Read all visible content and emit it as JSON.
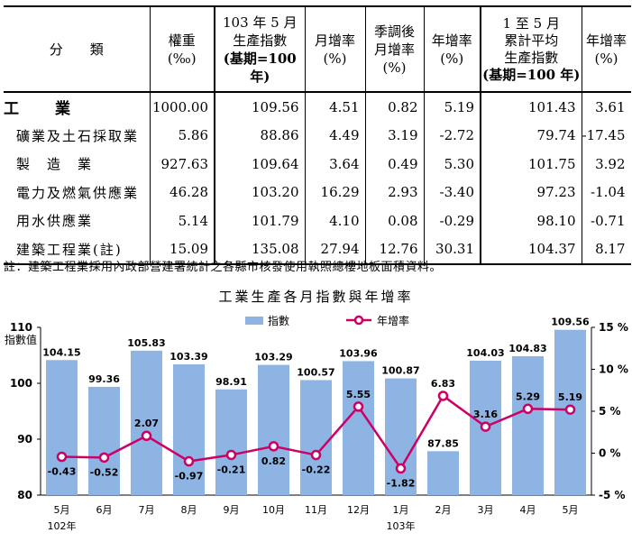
{
  "table": {
    "headers": {
      "category": "分　　類",
      "weight_l1": "權重",
      "weight_l2": "(‰)",
      "index_l1": "103 年 5 月",
      "index_l2": "生產指數",
      "index_l3": "(基期=100 年)",
      "mom_l1": "月增率",
      "mom_l2": "(%)",
      "sa_l1": "季調後",
      "sa_l2": "月增率",
      "sa_l3": "(%)",
      "yoy_l1": "年增率",
      "yoy_l2": "(%)",
      "cum_l1": "1 至 5 月",
      "cum_l2": "累計平均",
      "cum_l3": "生產指數",
      "cum_l4": "(基期=100 年)",
      "cumyoy_l1": "年增率",
      "cumyoy_l2": "(%)"
    },
    "rows": [
      {
        "name": "工　　業",
        "weight": "1000.00",
        "index": "109.56",
        "mom": "4.51",
        "sa": "0.82",
        "yoy": "5.19",
        "cum": "101.43",
        "cumyoy": "3.61"
      },
      {
        "name": "礦業及土石採取業",
        "weight": "5.86",
        "index": "88.86",
        "mom": "4.49",
        "sa": "3.19",
        "yoy": "-2.72",
        "cum": "79.74",
        "cumyoy": "-17.45"
      },
      {
        "name": "製　造　業",
        "weight": "927.63",
        "index": "109.64",
        "mom": "3.64",
        "sa": "0.49",
        "yoy": "5.30",
        "cum": "101.75",
        "cumyoy": "3.92"
      },
      {
        "name": "電力及燃氣供應業",
        "weight": "46.28",
        "index": "103.20",
        "mom": "16.29",
        "sa": "2.93",
        "yoy": "-3.40",
        "cum": "97.23",
        "cumyoy": "-1.04"
      },
      {
        "name": "用水供應業",
        "weight": "5.14",
        "index": "101.79",
        "mom": "4.10",
        "sa": "0.08",
        "yoy": "-0.29",
        "cum": "98.10",
        "cumyoy": "-0.71"
      },
      {
        "name": "建築工程業(註)",
        "weight": "15.09",
        "index": "135.08",
        "mom": "27.94",
        "sa": "12.76",
        "yoy": "30.31",
        "cum": "104.37",
        "cumyoy": "8.17"
      }
    ]
  },
  "footnote": "註：建築工程業採用內政部營建署統計之各縣市核發使用執照總樓地板面積資料。",
  "chart_data": {
    "type": "bar",
    "title": "工業生產各月指數與年增率",
    "categories": [
      "5月",
      "6月",
      "7月",
      "8月",
      "9月",
      "10月",
      "11月",
      "12月",
      "1月",
      "2月",
      "3月",
      "4月",
      "5月"
    ],
    "year_labels": [
      {
        "index": 0,
        "label": "102年"
      },
      {
        "index": 8,
        "label": "103年"
      }
    ],
    "ylabel": "指數值",
    "ylim": [
      80,
      110
    ],
    "y_ticks": [
      80,
      90,
      100,
      110
    ],
    "y2lim": [
      -5,
      15
    ],
    "y2_ticks": [
      "-5 %",
      "0 %",
      "5 %",
      "10 %",
      "15 %"
    ],
    "series": [
      {
        "name": "指數",
        "type": "bar",
        "color": "#8db4e2",
        "values": [
          104.15,
          99.36,
          105.83,
          103.39,
          98.91,
          103.29,
          100.57,
          103.96,
          100.87,
          87.85,
          104.03,
          104.83,
          109.56
        ]
      },
      {
        "name": "年增率",
        "type": "line",
        "color": "#cc0066",
        "values": [
          -0.43,
          -0.52,
          2.07,
          -0.97,
          -0.21,
          0.82,
          -0.22,
          5.55,
          -1.82,
          6.83,
          3.16,
          5.29,
          5.19
        ]
      }
    ]
  }
}
